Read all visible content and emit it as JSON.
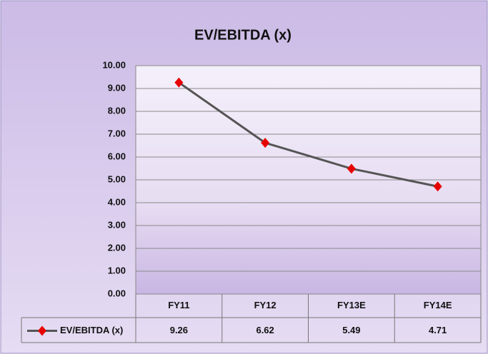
{
  "chart_data": {
    "type": "line",
    "title": "EV/EBITDA (x)",
    "categories": [
      "FY11",
      "FY12",
      "FY13E",
      "FY14E"
    ],
    "series": [
      {
        "name": "EV/EBITDA (x)",
        "color": "#555555",
        "marker_color": "#e60000",
        "values": [
          9.26,
          6.62,
          5.49,
          4.71
        ]
      }
    ],
    "ylim": [
      0,
      10
    ],
    "yticks": [
      {
        "value": 0,
        "label": "0.00"
      },
      {
        "value": 1,
        "label": "1.00"
      },
      {
        "value": 2,
        "label": "2.00"
      },
      {
        "value": 3,
        "label": "3.00"
      },
      {
        "value": 4,
        "label": "4.00"
      },
      {
        "value": 5,
        "label": "5.00"
      },
      {
        "value": 6,
        "label": "6.00"
      },
      {
        "value": 7,
        "label": "7.00"
      },
      {
        "value": 8,
        "label": "8.00"
      },
      {
        "value": 9,
        "label": "9.00"
      },
      {
        "value": 10,
        "label": "10.00"
      }
    ],
    "grid": true,
    "data_table": true
  }
}
